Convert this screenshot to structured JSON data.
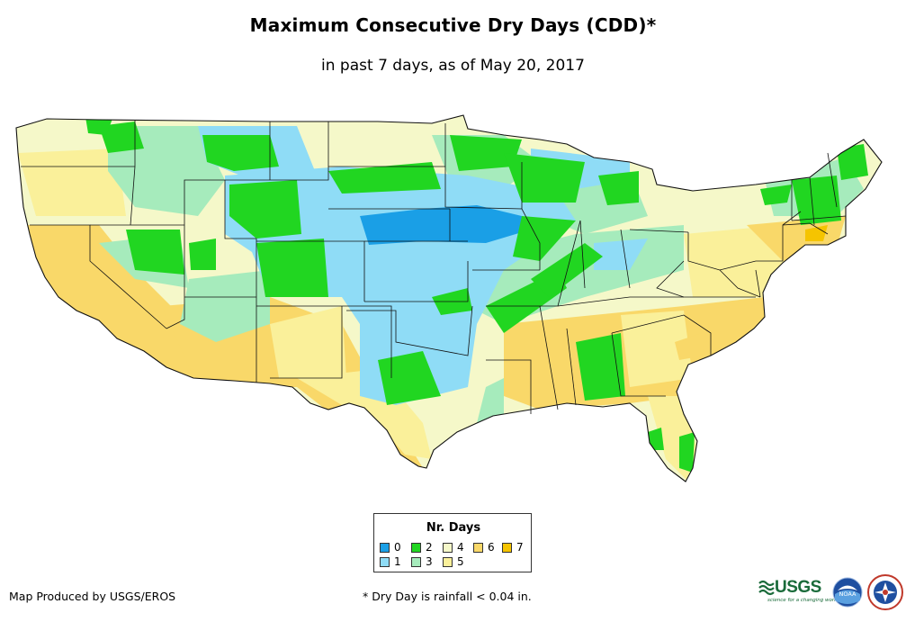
{
  "title": "Maximum Consecutive Dry Days (CDD)*",
  "subtitle": "in past 7 days, as of May 20, 2017",
  "legend": {
    "title": "Nr. Days",
    "items": [
      {
        "label": "0",
        "color": "#1a9fe6"
      },
      {
        "label": "1",
        "color": "#8fdcf6"
      },
      {
        "label": "2",
        "color": "#21d621"
      },
      {
        "label": "3",
        "color": "#a6ebbc"
      },
      {
        "label": "4",
        "color": "#f5f8c9"
      },
      {
        "label": "5",
        "color": "#faf09a"
      },
      {
        "label": "6",
        "color": "#f9d869"
      },
      {
        "label": "7",
        "color": "#f5c400"
      }
    ]
  },
  "footer": {
    "credit": "Map Produced by USGS/EROS",
    "footnote": "* Dry Day is rainfall < 0.04 in."
  },
  "logos": {
    "usgs_wordmark": "USGS",
    "usgs_tagline": "science for a changing world",
    "noaa_text": "NOAA"
  }
}
